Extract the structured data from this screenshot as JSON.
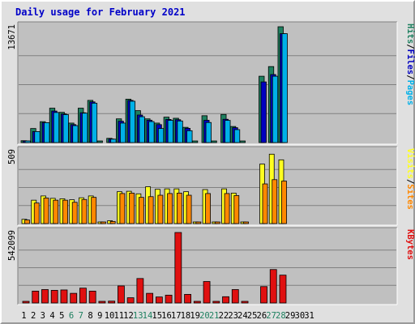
{
  "title": "Daily usage for February 2021",
  "colors": {
    "hits": "#1e8060",
    "files": "#0000c0",
    "pages": "#00b0e8",
    "visits": "#ffff20",
    "sites": "#ff8800",
    "kbytes": "#e01010",
    "weekend": "#1e8060",
    "weekday": "#000000"
  },
  "chart_data": [
    {
      "type": "bar",
      "panel": "top",
      "categories": [
        "1",
        "2",
        "3",
        "4",
        "5",
        "6",
        "7",
        "8",
        "9",
        "10",
        "11",
        "12",
        "13",
        "14",
        "15",
        "16",
        "17",
        "18",
        "19",
        "20",
        "21",
        "22",
        "23",
        "24",
        "25",
        "26",
        "27",
        "28",
        "29",
        "30",
        "31"
      ],
      "weekend_days": [
        "6",
        "7",
        "13",
        "14",
        "20",
        "21",
        "27",
        "28"
      ],
      "ymax_label": "13671",
      "ylim": [
        0,
        13671
      ],
      "legend": [
        {
          "label": "Pages",
          "color_key": "pages"
        },
        {
          "label": "/",
          "color_key": "slash"
        },
        {
          "label": "Files",
          "color_key": "files"
        },
        {
          "label": "/",
          "color_key": "slash"
        },
        {
          "label": "Hits",
          "color_key": "hits"
        }
      ],
      "series": [
        {
          "name": "Hits",
          "values": [
            220,
            1660,
            2470,
            4060,
            3570,
            2300,
            4060,
            4980,
            100,
            500,
            2800,
            5120,
            3770,
            2800,
            2300,
            3000,
            2870,
            1800,
            100,
            3170,
            100,
            3320,
            1900,
            100,
            0,
            7830,
            8970,
            13670,
            0,
            0,
            0
          ]
        },
        {
          "name": "Files",
          "values": [
            150,
            1300,
            2350,
            3720,
            3380,
            2120,
            3520,
            4800,
            0,
            420,
            2520,
            4980,
            3250,
            2640,
            2120,
            2730,
            2700,
            1680,
            0,
            2630,
            0,
            2750,
            1760,
            0,
            0,
            7160,
            8030,
            12850,
            0,
            0,
            0
          ]
        },
        {
          "name": "Pages",
          "values": [
            120,
            1300,
            2350,
            3550,
            3300,
            2000,
            3470,
            4650,
            0,
            400,
            2300,
            4880,
            3050,
            2480,
            1660,
            2620,
            2550,
            1400,
            0,
            2370,
            0,
            2620,
            1530,
            0,
            0,
            0,
            7830,
            12850,
            0,
            0,
            0
          ]
        }
      ]
    },
    {
      "type": "bar",
      "panel": "middle",
      "categories": [
        "1",
        "2",
        "3",
        "4",
        "5",
        "6",
        "7",
        "8",
        "9",
        "10",
        "11",
        "12",
        "13",
        "14",
        "15",
        "16",
        "17",
        "18",
        "19",
        "20",
        "21",
        "22",
        "23",
        "24",
        "25",
        "26",
        "27",
        "28",
        "29",
        "30",
        "31"
      ],
      "ymax_label": "509",
      "ylim": [
        0,
        509
      ],
      "legend": [
        {
          "label": "Sites",
          "color_key": "sites"
        },
        {
          "label": "/",
          "color_key": "slash"
        },
        {
          "label": "Visits",
          "color_key": "visits"
        }
      ],
      "series": [
        {
          "name": "Visits",
          "values": [
            30,
            165,
            195,
            178,
            175,
            168,
            182,
            195,
            10,
            20,
            225,
            228,
            210,
            260,
            242,
            245,
            245,
            225,
            5,
            240,
            8,
            245,
            215,
            5,
            0,
            420,
            490,
            450,
            0,
            0,
            0
          ]
        },
        {
          "name": "Sites",
          "values": [
            25,
            145,
            180,
            165,
            165,
            150,
            170,
            185,
            8,
            15,
            212,
            215,
            185,
            190,
            200,
            212,
            215,
            200,
            4,
            212,
            5,
            212,
            198,
            4,
            0,
            280,
            310,
            300,
            0,
            0,
            0
          ]
        }
      ]
    },
    {
      "type": "bar",
      "panel": "bottom",
      "categories": [
        "1",
        "2",
        "3",
        "4",
        "5",
        "6",
        "7",
        "8",
        "9",
        "10",
        "11",
        "12",
        "13",
        "14",
        "15",
        "16",
        "17",
        "18",
        "19",
        "20",
        "21",
        "22",
        "23",
        "24",
        "25",
        "26",
        "27",
        "28",
        "29",
        "30",
        "31"
      ],
      "ymax_label": "542099",
      "ylim": [
        0,
        542099
      ],
      "legend": [
        {
          "label": "KBytes",
          "color_key": "kbytes"
        }
      ],
      "series": [
        {
          "name": "KBytes",
          "values": [
            8000,
            91000,
            103000,
            97000,
            100000,
            74000,
            114000,
            91000,
            5000,
            14000,
            131000,
            40000,
            188000,
            74000,
            46000,
            60000,
            542000,
            66000,
            5000,
            165000,
            7000,
            48000,
            103000,
            8000,
            0,
            126000,
            257000,
            214000,
            0,
            0,
            0
          ]
        }
      ]
    }
  ]
}
